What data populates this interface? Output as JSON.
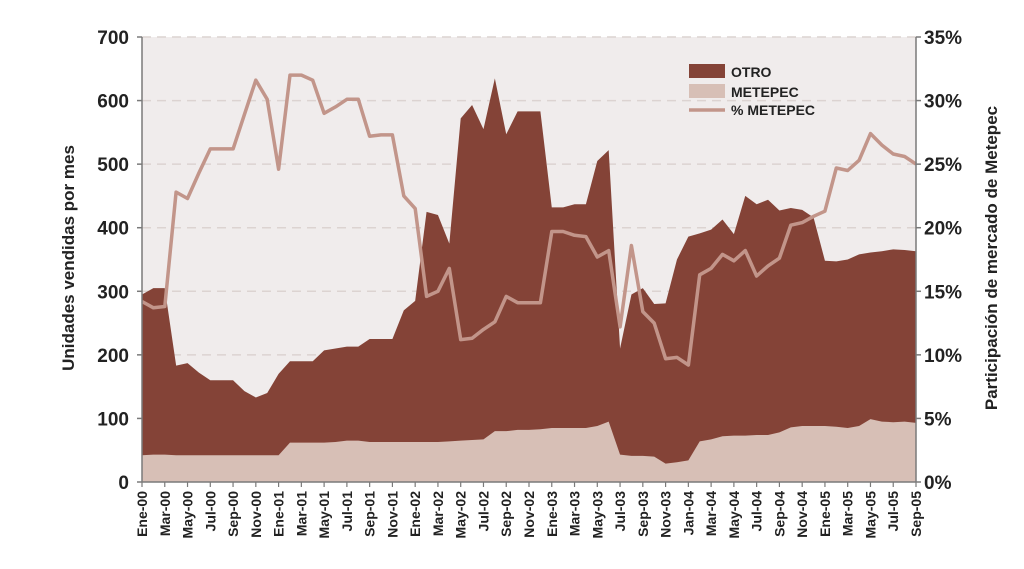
{
  "chart_data": {
    "type": "area",
    "ylabel": "Unidades vendidas por mes",
    "y2label": "Participación de mercado de Metepec",
    "ylim": [
      0,
      700
    ],
    "y2lim": [
      0,
      35
    ],
    "y_ticks": [
      "0",
      "100",
      "200",
      "300",
      "400",
      "500",
      "600",
      "700"
    ],
    "y2_ticks": [
      "0%",
      "5%",
      "10%",
      "15%",
      "20%",
      "25%",
      "30%",
      "35%"
    ],
    "grid": true,
    "legend_position": "top-right",
    "x_labels": [
      "Ene-00",
      "Mar-00",
      "May-00",
      "Jul-00",
      "Sep-00",
      "Nov-00",
      "Ene-01",
      "Mar-01",
      "May-01",
      "Jul-01",
      "Sep-01",
      "Nov-01",
      "Ene-02",
      "Mar-02",
      "May-02",
      "Jul-02",
      "Sep-02",
      "Nov-02",
      "Ene-03",
      "Mar-03",
      "May-03",
      "Jul-03",
      "Sep-03",
      "Nov-03",
      "Jan-04",
      "Mar-04",
      "May-04",
      "Jul-04",
      "Sep-04",
      "Nov-04",
      "Ene-05",
      "Mar-05",
      "May-05",
      "Jul-05",
      "Sep-05"
    ],
    "series": [
      {
        "name": "OTRO",
        "stack": "total",
        "color": "#844337",
        "values": [
          295,
          305,
          305,
          183,
          187,
          172,
          160,
          160,
          160,
          143,
          133,
          140,
          170,
          190,
          190,
          190,
          207,
          210,
          213,
          213,
          225,
          225,
          225,
          270,
          285,
          425,
          420,
          375,
          572,
          593,
          555,
          635,
          547,
          583,
          583,
          583,
          432,
          432,
          437,
          437,
          505,
          522,
          210,
          295,
          305,
          280,
          281,
          350,
          386,
          391,
          397,
          413,
          390,
          450,
          437,
          444,
          427,
          431,
          428,
          416,
          348,
          347,
          350,
          358,
          361,
          363,
          366,
          365,
          363
        ]
      },
      {
        "name": "METEPEC",
        "color": "#d7bfb6",
        "values": [
          42,
          43,
          43,
          42,
          42,
          42,
          42,
          42,
          42,
          42,
          42,
          42,
          42,
          62,
          62,
          62,
          62,
          63,
          65,
          65,
          63,
          63,
          63,
          63,
          63,
          63,
          63,
          64,
          65,
          66,
          67,
          80,
          80,
          82,
          82,
          83,
          85,
          85,
          85,
          85,
          88,
          95,
          43,
          41,
          41,
          40,
          29,
          31,
          34,
          64,
          67,
          72,
          73,
          73,
          74,
          74,
          78,
          86,
          88,
          88,
          88,
          87,
          85,
          88,
          99,
          95,
          94,
          95,
          93
        ]
      },
      {
        "name": "% METEPEC",
        "axis": "secondary",
        "color": "#c2958a",
        "values": [
          14.2,
          13.7,
          13.8,
          22.8,
          22.3,
          24.3,
          26.2,
          26.2,
          26.2,
          28.9,
          31.6,
          30.1,
          24.6,
          32.0,
          32.0,
          31.6,
          29.0,
          29.5,
          30.1,
          30.1,
          27.2,
          27.3,
          27.3,
          22.5,
          21.5,
          14.6,
          15.0,
          16.8,
          11.2,
          11.3,
          12.0,
          12.6,
          14.6,
          14.1,
          14.1,
          14.1,
          19.7,
          19.7,
          19.4,
          19.3,
          17.7,
          18.2,
          12.2,
          18.6,
          13.4,
          12.5,
          9.7,
          9.8,
          9.2,
          16.3,
          16.8,
          17.9,
          17.4,
          18.2,
          16.2,
          17.0,
          17.6,
          20.2,
          20.4,
          20.9,
          21.3,
          24.7,
          24.5,
          25.3,
          27.4,
          26.5,
          25.8,
          25.6,
          25.0
        ]
      }
    ]
  }
}
